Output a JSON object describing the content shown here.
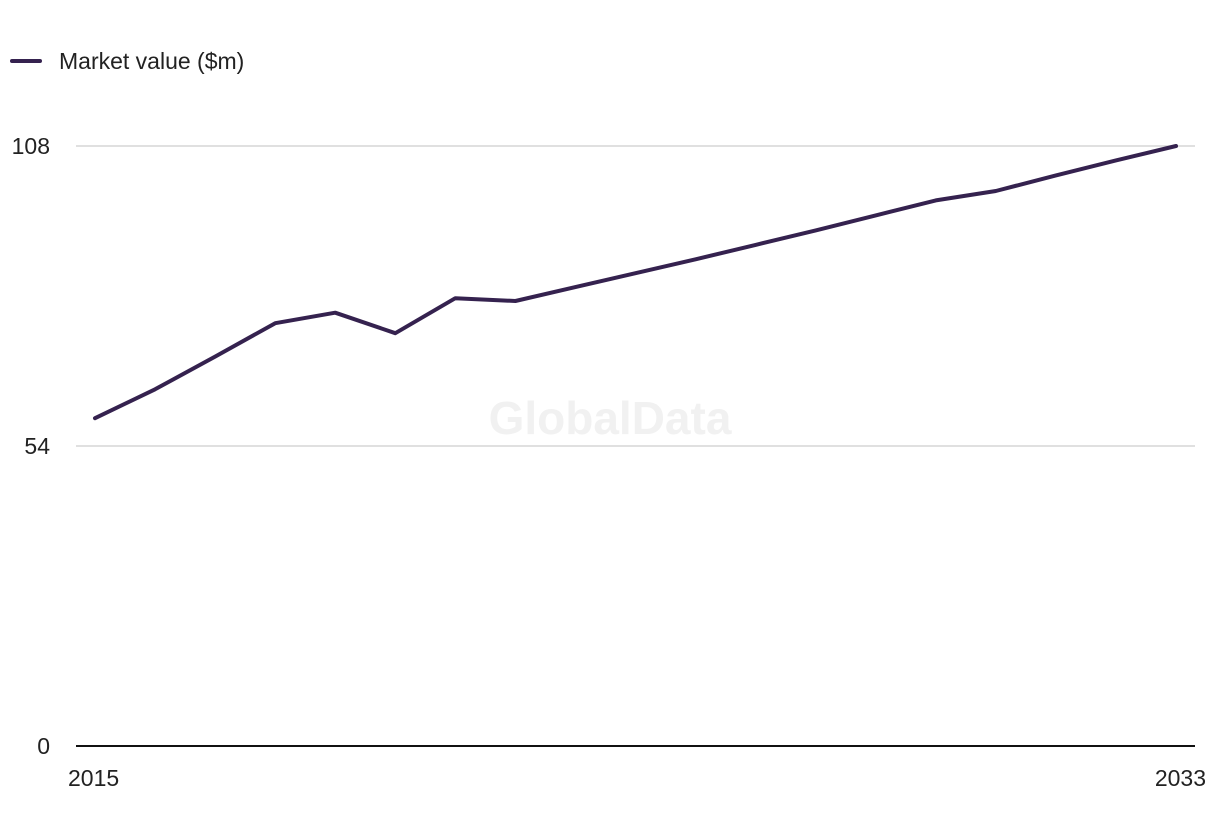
{
  "legend": {
    "label": "Market value ($m)"
  },
  "watermark": "GlobalData",
  "colors": {
    "series": "#35224f",
    "grid": "#d6d6d6",
    "axis": "#111111",
    "watermark": "#f1f1f1"
  },
  "chart_data": {
    "type": "line",
    "title": "",
    "xlabel": "",
    "ylabel": "",
    "x": [
      2015,
      2016,
      2017,
      2018,
      2019,
      2020,
      2021,
      2022,
      2023,
      2024,
      2025,
      2026,
      2027,
      2028,
      2029,
      2030,
      2031,
      2032,
      2033
    ],
    "series": [
      {
        "name": "Market value ($m)",
        "values": [
          59.0,
          64.2,
          70.1,
          76.1,
          78.0,
          74.3,
          80.6,
          80.1,
          82.6,
          85.1,
          87.6,
          90.2,
          92.8,
          95.5,
          98.2,
          99.9,
          102.7,
          105.4,
          108.0
        ]
      }
    ],
    "xlim": [
      2015,
      2033
    ],
    "ylim": [
      0,
      108
    ],
    "x_ticks": [
      "2015",
      "2033"
    ],
    "y_ticks": [
      "0",
      "54",
      "108"
    ],
    "grid": true,
    "legend_position": "top-left"
  }
}
